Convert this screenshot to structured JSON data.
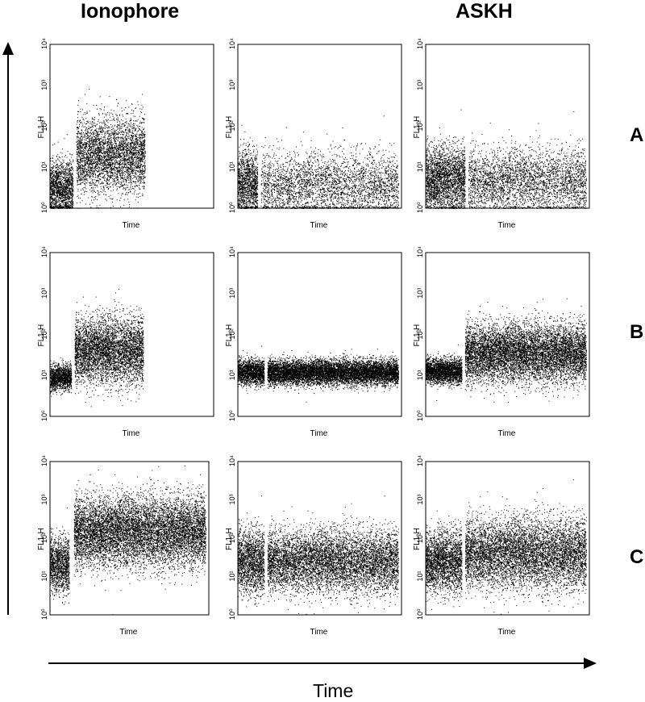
{
  "columns": [
    "Ionophore",
    "",
    "ASKH"
  ],
  "rows": [
    "A",
    "B",
    "C"
  ],
  "x_axis_arrow_label": "Time",
  "chart_data": {
    "type": "scatter",
    "description_of_axes": {
      "xlabel": "Time",
      "ylabel": "FL1-H",
      "yscale": "log",
      "ylim": [
        1,
        10000
      ],
      "yticks": [
        "10⁰",
        "10¹",
        "10²",
        "10³",
        "10⁴"
      ]
    },
    "panels": [
      {
        "row": "A",
        "column": "Ionophore",
        "segments": [
          {
            "x": [
              0,
              0.14
            ],
            "y_center": 3,
            "y_spread": 0.35
          },
          {
            "x": [
              0.16,
              0.58
            ],
            "y_center": 20,
            "y_spread": 0.45
          }
        ]
      },
      {
        "row": "A",
        "column": "",
        "segments": [
          {
            "x": [
              0,
              0.12
            ],
            "y_center": 4,
            "y_spread": 0.4
          },
          {
            "x": [
              0.14,
              0.98
            ],
            "y_center": 3.5,
            "y_spread": 0.4
          }
        ]
      },
      {
        "row": "A",
        "column": "ASKH",
        "segments": [
          {
            "x": [
              0,
              0.24
            ],
            "y_center": 5,
            "y_spread": 0.4
          },
          {
            "x": [
              0.26,
              0.98
            ],
            "y_center": 4.5,
            "y_spread": 0.4
          }
        ]
      },
      {
        "row": "B",
        "column": "Ionophore",
        "segments": [
          {
            "x": [
              0,
              0.13
            ],
            "y_center": 9,
            "y_spread": 0.15
          },
          {
            "x": [
              0.15,
              0.57
            ],
            "y_center": 40,
            "y_spread": 0.4
          }
        ]
      },
      {
        "row": "B",
        "column": "",
        "segments": [
          {
            "x": [
              0,
              0.16
            ],
            "y_center": 12,
            "y_spread": 0.15
          },
          {
            "x": [
              0.18,
              0.98
            ],
            "y_center": 12,
            "y_spread": 0.15
          }
        ]
      },
      {
        "row": "B",
        "column": "ASKH",
        "segments": [
          {
            "x": [
              0,
              0.22
            ],
            "y_center": 13,
            "y_spread": 0.15
          },
          {
            "x": [
              0.24,
              0.98
            ],
            "y_center": 35,
            "y_spread": 0.35
          }
        ]
      },
      {
        "row": "C",
        "column": "Ionophore",
        "segments": [
          {
            "x": [
              0,
              0.12
            ],
            "y_center": 20,
            "y_spread": 0.35
          },
          {
            "x": [
              0.15,
              0.98
            ],
            "y_center": 150,
            "y_spread": 0.45
          }
        ]
      },
      {
        "row": "C",
        "column": "",
        "segments": [
          {
            "x": [
              0,
              0.16
            ],
            "y_center": 25,
            "y_spread": 0.4
          },
          {
            "x": [
              0.18,
              0.98
            ],
            "y_center": 25,
            "y_spread": 0.4
          }
        ]
      },
      {
        "row": "C",
        "column": "ASKH",
        "segments": [
          {
            "x": [
              0,
              0.22
            ],
            "y_center": 25,
            "y_spread": 0.4
          },
          {
            "x": [
              0.24,
              0.98
            ],
            "y_center": 40,
            "y_spread": 0.45
          }
        ]
      }
    ]
  }
}
